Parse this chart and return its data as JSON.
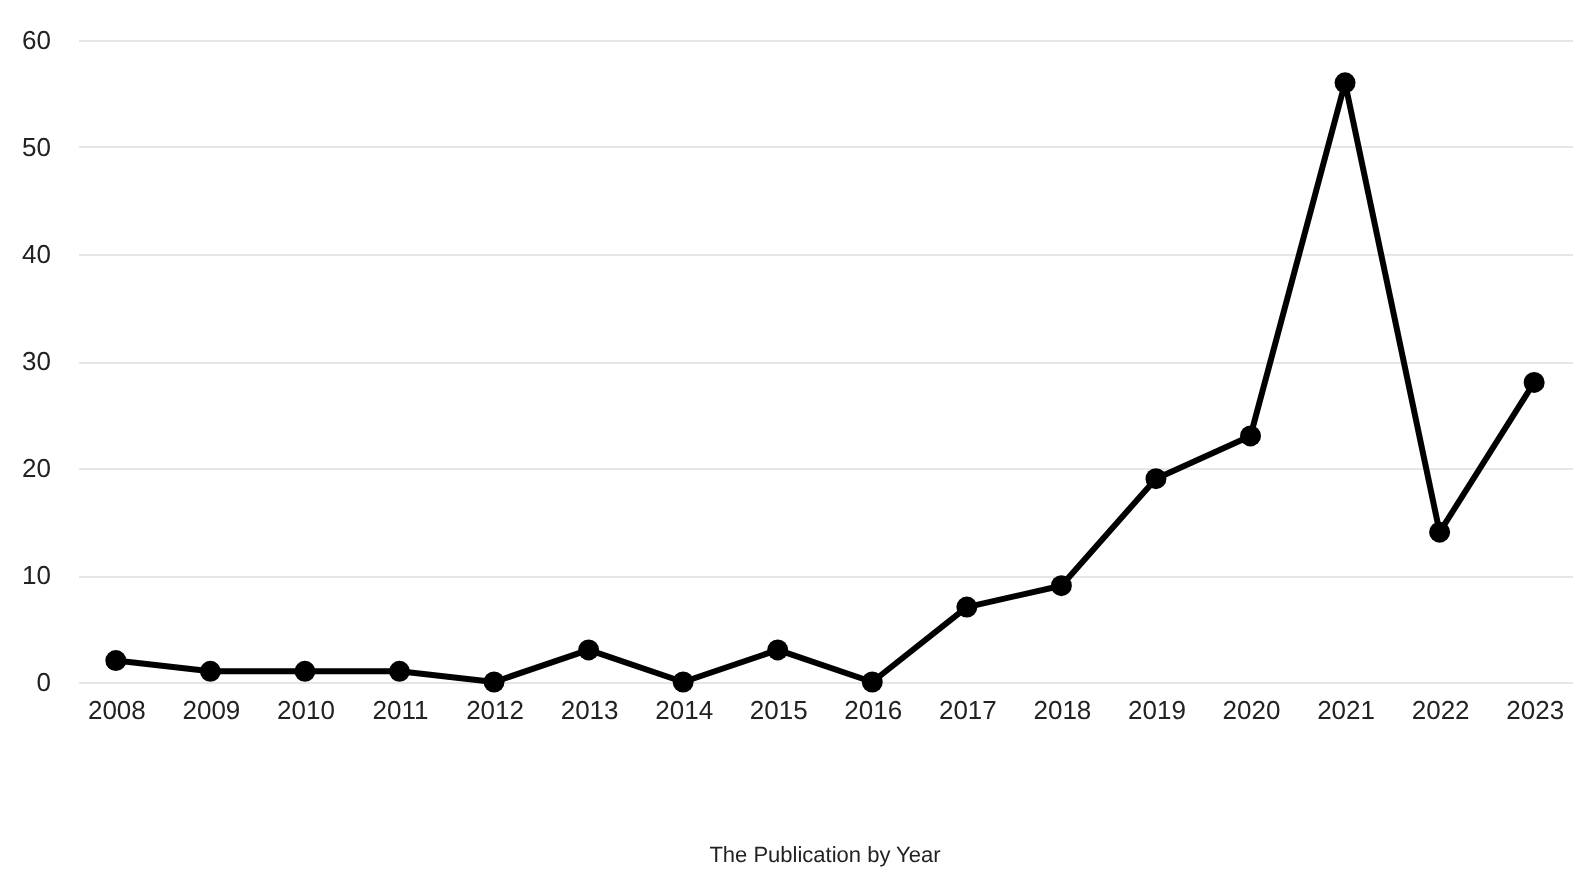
{
  "chart_data": {
    "type": "line",
    "annotations": [
      "The Publication by Year"
    ],
    "categories": [
      "2008",
      "2009",
      "2010",
      "2011",
      "2012",
      "2013",
      "2014",
      "2015",
      "2016",
      "2017",
      "2018",
      "2019",
      "2020",
      "2021",
      "2022",
      "2023"
    ],
    "series": [
      {
        "color": "#000000",
        "values": [
          2,
          1,
          1,
          1,
          0,
          3,
          0,
          3,
          0,
          7,
          9,
          19,
          23,
          56,
          14,
          28
        ]
      }
    ],
    "ylim": [
      0,
      60
    ],
    "yticks": [
      0,
      10,
      20,
      30,
      40,
      50,
      60
    ],
    "grid": "y",
    "marker": "circle",
    "line_style": "solid"
  }
}
